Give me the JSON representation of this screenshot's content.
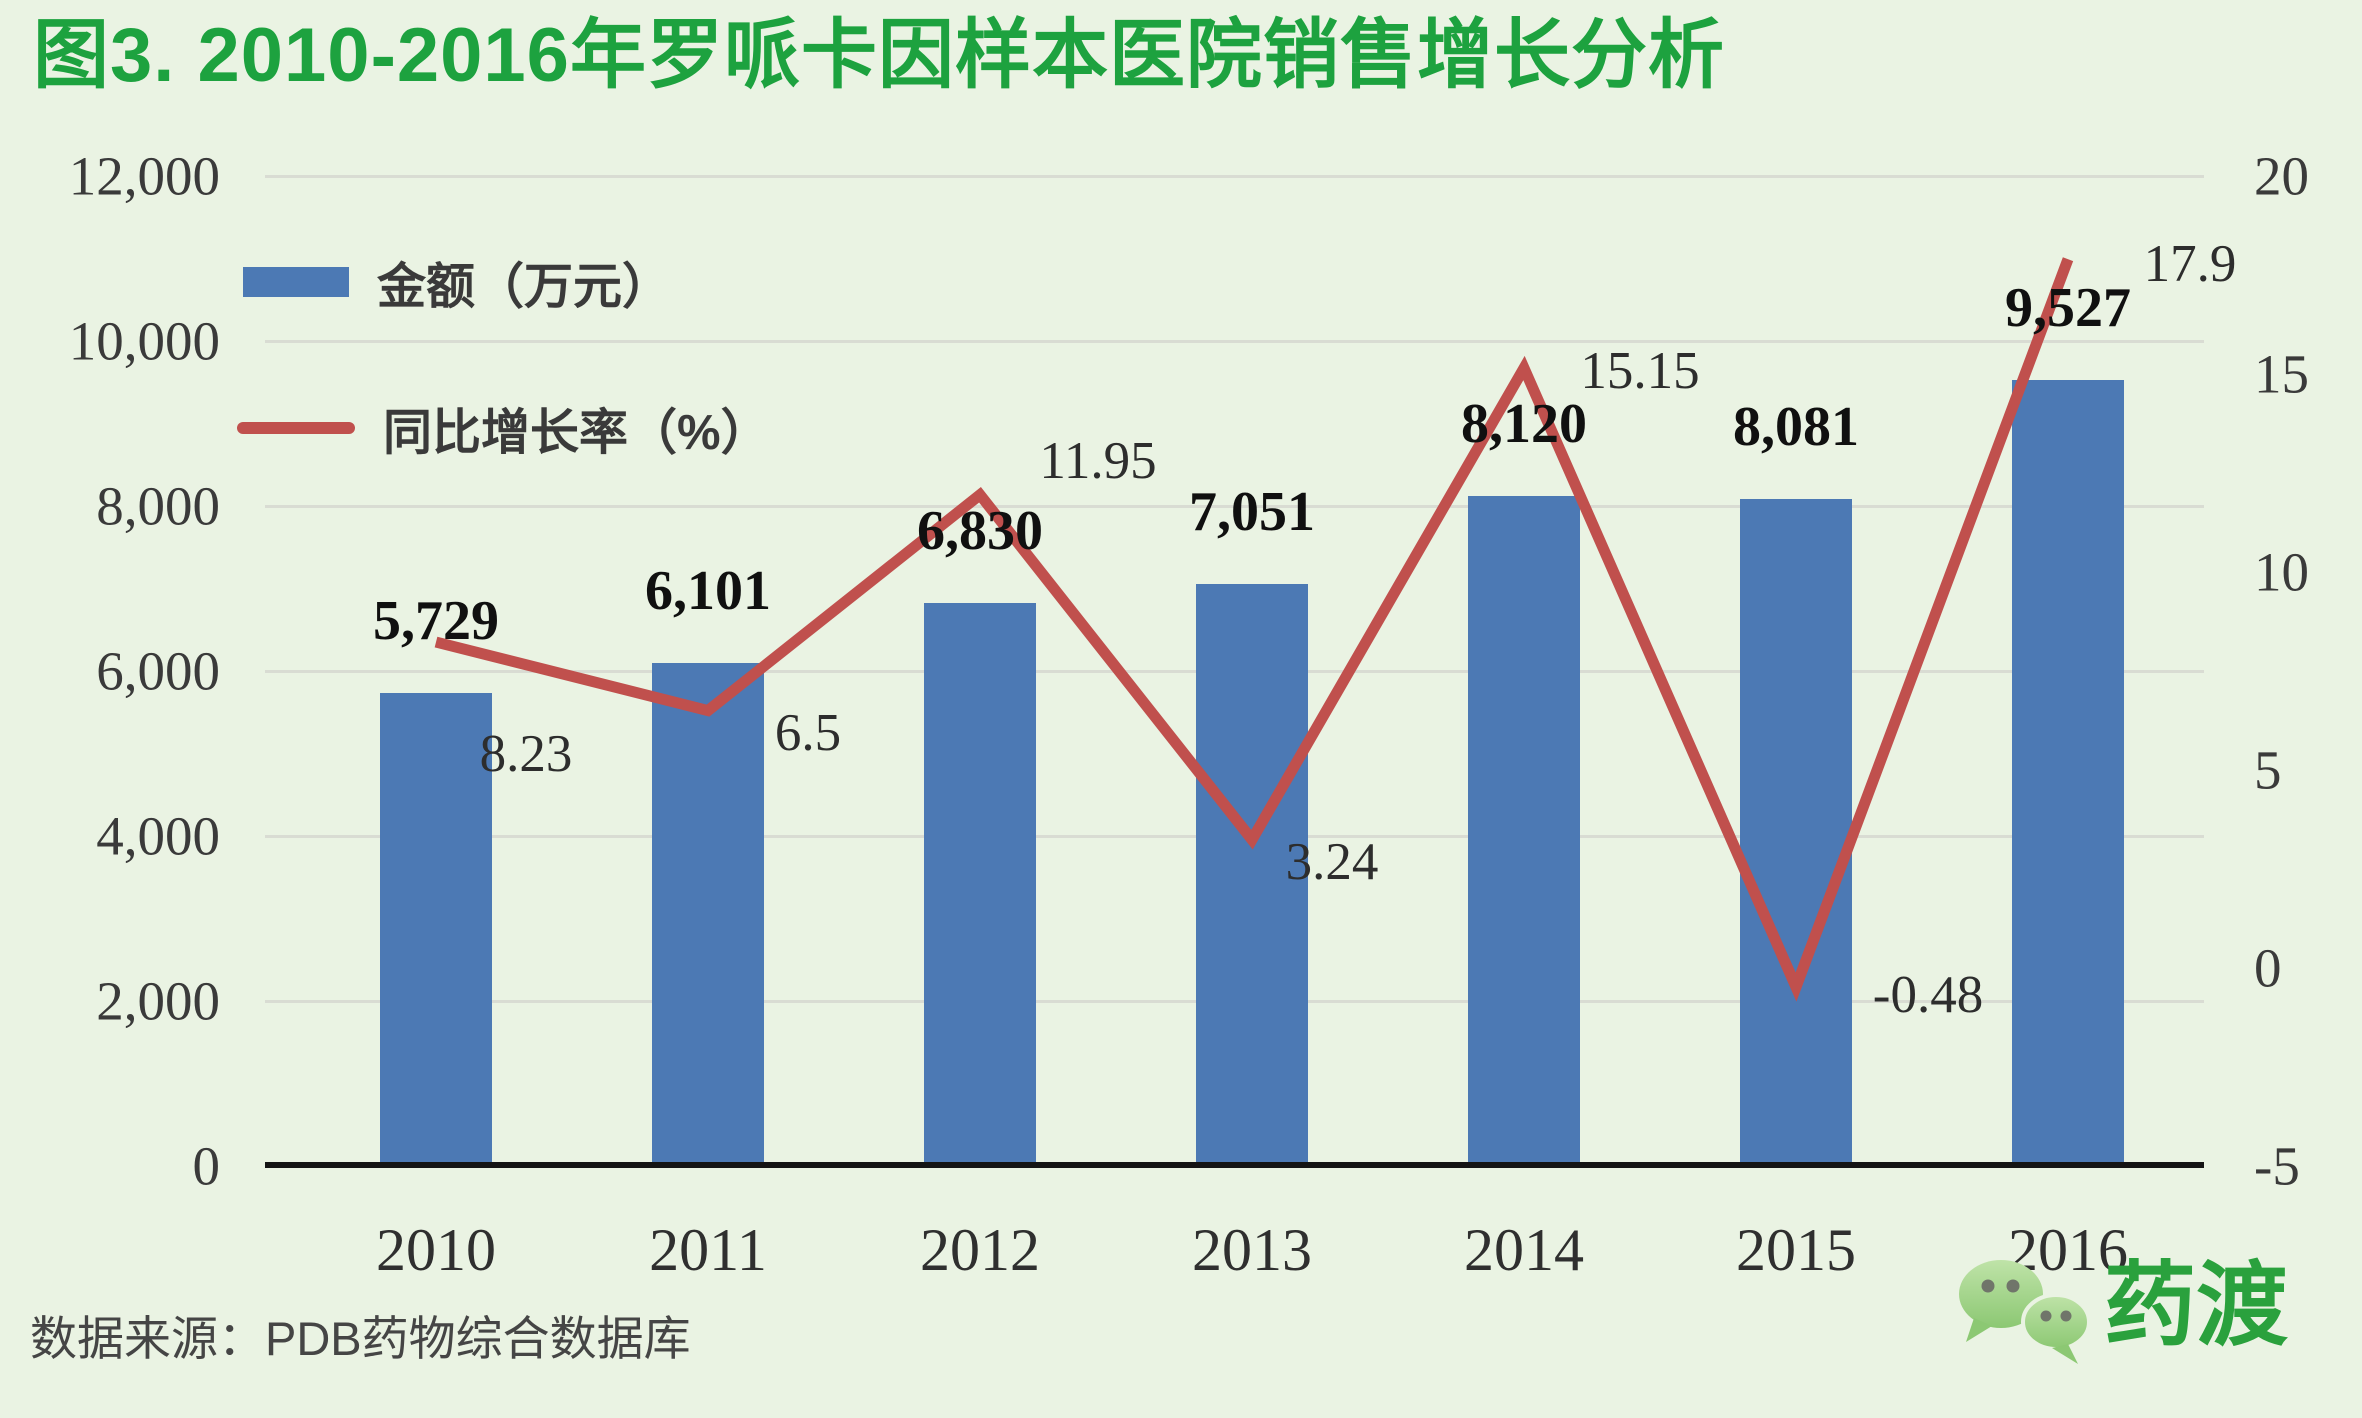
{
  "title": "图3. 2010-2016年罗哌卡因样本医院销售增长分析",
  "source": "数据来源：PDB药物综合数据库",
  "brand": {
    "name": "药渡",
    "icon": "wechat-bubbles-icon"
  },
  "legend": [
    {
      "label": "金额（万元）",
      "type": "bar",
      "color": "#4c79b4"
    },
    {
      "label": "同比增长率（%）",
      "type": "line",
      "color": "#c0504d"
    }
  ],
  "colors": {
    "background": "#eaf3e3",
    "title_green": "#1da23f",
    "bar_blue": "#4c79b4",
    "line_red": "#c0504d",
    "gridline": "#d9dcd3",
    "axis_text": "#3a3a3a",
    "brand_green": "#2aa13d"
  },
  "chart_data": {
    "type": "bar",
    "subtype": "bar+line dual axis",
    "categories": [
      "2010",
      "2011",
      "2012",
      "2013",
      "2014",
      "2015",
      "2016"
    ],
    "series": [
      {
        "name": "金额（万元）",
        "type": "bar",
        "axis": "left",
        "color": "#4c79b4",
        "values": [
          5729,
          6101,
          6830,
          7051,
          8120,
          8081,
          9527
        ],
        "labels": [
          "5,729",
          "6,101",
          "6,830",
          "7,051",
          "8,120",
          "8,081",
          "9,527"
        ]
      },
      {
        "name": "同比增长率（%）",
        "type": "line",
        "axis": "right",
        "color": "#c0504d",
        "values": [
          8.23,
          6.5,
          11.95,
          3.24,
          15.15,
          -0.48,
          17.9
        ],
        "labels": [
          "8.23",
          "6.5",
          "11.95",
          "3.24",
          "15.15",
          "-0.48",
          "17.9"
        ]
      }
    ],
    "left_axis": {
      "min": 0,
      "max": 12000,
      "step": 2000,
      "ticks": [
        "0",
        "2,000",
        "4,000",
        "6,000",
        "8,000",
        "10,000",
        "12,000"
      ]
    },
    "right_axis": {
      "min": -5,
      "max": 20,
      "step": 5,
      "ticks": [
        "-5",
        "0",
        "5",
        "10",
        "15",
        "20"
      ]
    },
    "grid": true,
    "legend_position": "top-left-inside"
  }
}
